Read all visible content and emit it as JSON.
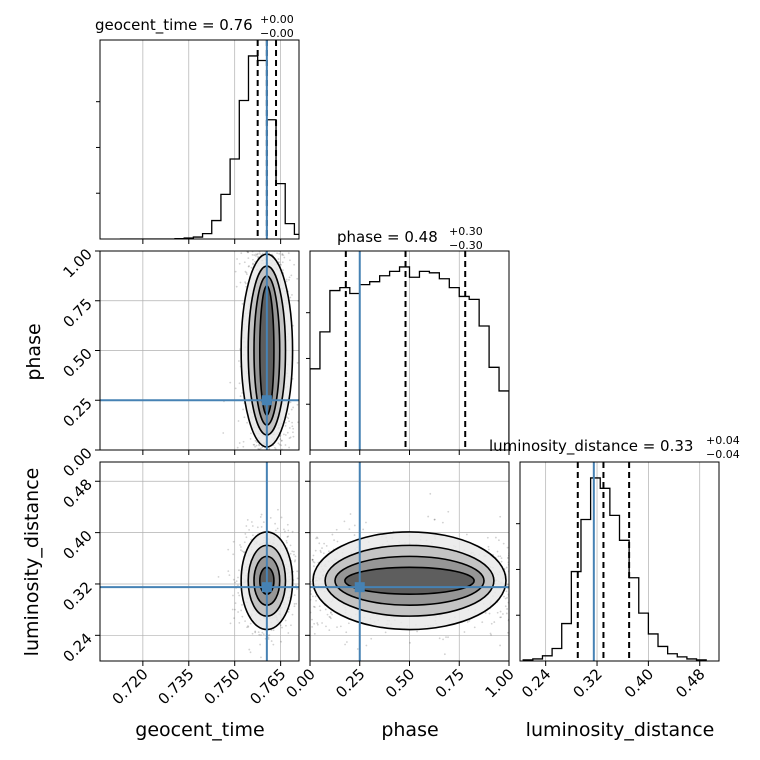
{
  "figure": {
    "background": "#ffffff",
    "truth_color": "#4682b4",
    "hist_color": "#000000",
    "grid_color": "#b0b0b0"
  },
  "chart_data": {
    "type": "corner",
    "parameters": [
      "geocent_time",
      "phase",
      "luminosity_distance"
    ],
    "truths": {
      "geocent_time": 0.7605,
      "phase": 0.25,
      "luminosity_distance": 0.315
    },
    "titles": [
      {
        "param": "geocent_time",
        "text": "geocent_time = 0.76",
        "plus": "+0.00",
        "minus": "−0.00"
      },
      {
        "param": "phase",
        "text": "phase = 0.48",
        "plus": "+0.30",
        "minus": "−0.30"
      },
      {
        "param": "luminosity_distance",
        "text": "luminosity_distance = 0.33",
        "plus": "+0.04",
        "minus": "−0.04"
      }
    ],
    "axis_labels": {
      "geocent_time": "geocent_time",
      "phase": "phase",
      "luminosity_distance": "luminosity_distance"
    },
    "axes": {
      "geocent_time": {
        "lim": [
          0.706,
          0.771
        ],
        "ticks": [
          0.72,
          0.735,
          0.75,
          0.765
        ],
        "tick_labels": [
          "0.720",
          "0.735",
          "0.750",
          "0.765"
        ]
      },
      "phase": {
        "lim": [
          0.0,
          1.0
        ],
        "ticks": [
          0.0,
          0.25,
          0.5,
          0.75,
          1.0
        ],
        "tick_labels": [
          "0.00",
          "0.25",
          "0.50",
          "0.75",
          "1.00"
        ]
      },
      "luminosity_distance": {
        "lim": [
          0.2,
          0.51
        ],
        "ticks": [
          0.24,
          0.32,
          0.4,
          0.48
        ],
        "tick_labels": [
          "0.24",
          "0.32",
          "0.40",
          "0.48"
        ]
      }
    },
    "marginals": {
      "geocent_time": {
        "bin_edges": [
          0.7125,
          0.7155,
          0.7185,
          0.7215,
          0.7245,
          0.7275,
          0.7305,
          0.7335,
          0.7365,
          0.7395,
          0.7425,
          0.7455,
          0.7485,
          0.7515,
          0.7545,
          0.7575,
          0.7605,
          0.7635,
          0.7665,
          0.7695,
          0.7725
        ],
        "counts": [
          0,
          0,
          0,
          0,
          0,
          0,
          0.5,
          1.2,
          2.5,
          7,
          24,
          58,
          104,
          180,
          238,
          232,
          155,
          72,
          20,
          6
        ],
        "quantiles": [
          0.7575,
          0.7605,
          0.7635
        ]
      },
      "phase": {
        "bin_edges": [
          0.0,
          0.05,
          0.1,
          0.15,
          0.2,
          0.25,
          0.3,
          0.35,
          0.4,
          0.45,
          0.5,
          0.55,
          0.6,
          0.65,
          0.7,
          0.75,
          0.8,
          0.85,
          0.9,
          0.95,
          1.0
        ],
        "counts": [
          55,
          80,
          108,
          110,
          106,
          112,
          114,
          118,
          121,
          124,
          117,
          121,
          120,
          116,
          110,
          104,
          102,
          84,
          56,
          40
        ],
        "quantiles": [
          0.18,
          0.48,
          0.78
        ]
      },
      "luminosity_distance": {
        "bin_edges": [
          0.205,
          0.22,
          0.235,
          0.25,
          0.265,
          0.28,
          0.295,
          0.31,
          0.325,
          0.34,
          0.355,
          0.37,
          0.385,
          0.4,
          0.415,
          0.43,
          0.445,
          0.46,
          0.475,
          0.49
        ],
        "counts": [
          1,
          2,
          5,
          12,
          36,
          86,
          136,
          176,
          166,
          140,
          116,
          80,
          46,
          26,
          14,
          7,
          4,
          2,
          1
        ],
        "quantiles": [
          0.29,
          0.33,
          0.37
        ]
      }
    },
    "densities_2d": [
      {
        "x": "geocent_time",
        "y": "phase",
        "center_x": 0.7605,
        "sigma_x": 0.0042,
        "center_y": 0.5,
        "sigma_y": 0.3,
        "spread_y": "uniform"
      },
      {
        "x": "geocent_time",
        "y": "luminosity_distance",
        "center_x": 0.7605,
        "sigma_x": 0.0042,
        "center_y": 0.325,
        "sigma_y": 0.038
      },
      {
        "x": "phase",
        "y": "luminosity_distance",
        "center_x": 0.5,
        "sigma_x": 0.3,
        "center_y": 0.325,
        "sigma_y": 0.038,
        "spread_x": "uniform"
      }
    ],
    "grid": true
  }
}
